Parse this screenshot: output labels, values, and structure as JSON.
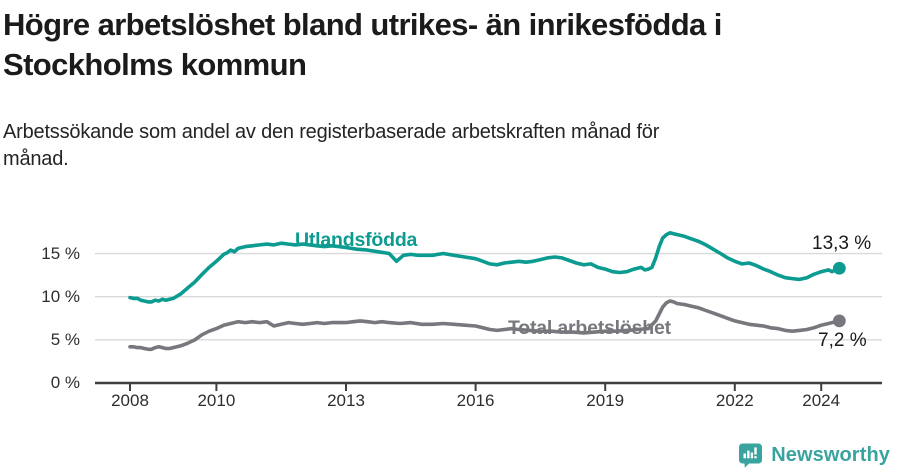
{
  "header": {
    "title_lines": [
      "Högre arbetslöshet bland utrikes- än inrikesfödda i",
      "Stockholms kommun"
    ],
    "subtitle_lines": [
      "Arbetssökande som andel av den registerbaserade arbetskraften månad för",
      "månad."
    ]
  },
  "footer": {
    "brand": "Newsworthy",
    "brand_color": "#3ba39f",
    "logo_icon": "bar-chart-speech-bubble-icon"
  },
  "chart_data": {
    "type": "line",
    "title": "Högre arbetslöshet bland utrikes- än inrikesfödda i Stockholms kommun",
    "subtitle": "Arbetssökande som andel av den registerbaserade arbetskraften månad för månad.",
    "unit": "%",
    "grid": true,
    "x_axis": {
      "ticks": [
        2008,
        2010,
        2013,
        2016,
        2019,
        2022,
        2024
      ],
      "tick_labels": [
        "2008",
        "2010",
        "2013",
        "2016",
        "2019",
        "2022",
        "2024"
      ],
      "range": [
        2007.2,
        2025.4
      ]
    },
    "y_axis": {
      "ticks": [
        0,
        5,
        10,
        15
      ],
      "tick_labels": [
        "0 %",
        "5 %",
        "10 %",
        "15 %"
      ],
      "range": [
        0,
        18.5
      ]
    },
    "colors": {
      "grid": "#d9d9d9",
      "axis": "#3e3e3e",
      "text": "#2e2e2e"
    },
    "series": [
      {
        "name": "Utlandsfödda",
        "color": "#0c9b90",
        "end_label": "13,3 %",
        "end_value": 13.3,
        "points": [
          [
            2008.0,
            9.9
          ],
          [
            2008.08,
            9.8
          ],
          [
            2008.17,
            9.8
          ],
          [
            2008.25,
            9.6
          ],
          [
            2008.33,
            9.5
          ],
          [
            2008.42,
            9.4
          ],
          [
            2008.5,
            9.4
          ],
          [
            2008.58,
            9.6
          ],
          [
            2008.67,
            9.5
          ],
          [
            2008.75,
            9.7
          ],
          [
            2008.83,
            9.6
          ],
          [
            2008.92,
            9.7
          ],
          [
            2009.0,
            9.8
          ],
          [
            2009.17,
            10.3
          ],
          [
            2009.33,
            11.0
          ],
          [
            2009.5,
            11.7
          ],
          [
            2009.67,
            12.6
          ],
          [
            2009.83,
            13.4
          ],
          [
            2010.0,
            14.1
          ],
          [
            2010.17,
            14.9
          ],
          [
            2010.25,
            15.1
          ],
          [
            2010.33,
            15.4
          ],
          [
            2010.42,
            15.2
          ],
          [
            2010.5,
            15.6
          ],
          [
            2010.67,
            15.8
          ],
          [
            2010.83,
            15.9
          ],
          [
            2011.0,
            16.0
          ],
          [
            2011.17,
            16.1
          ],
          [
            2011.33,
            16.0
          ],
          [
            2011.5,
            16.2
          ],
          [
            2011.67,
            16.1
          ],
          [
            2011.83,
            16.0
          ],
          [
            2012.0,
            16.1
          ],
          [
            2012.17,
            16.0
          ],
          [
            2012.33,
            15.9
          ],
          [
            2012.5,
            15.8
          ],
          [
            2012.67,
            15.9
          ],
          [
            2012.83,
            15.8
          ],
          [
            2013.0,
            15.7
          ],
          [
            2013.25,
            15.5
          ],
          [
            2013.5,
            15.4
          ],
          [
            2013.75,
            15.2
          ],
          [
            2014.0,
            15.0
          ],
          [
            2014.17,
            14.1
          ],
          [
            2014.33,
            14.8
          ],
          [
            2014.5,
            14.9
          ],
          [
            2014.67,
            14.8
          ],
          [
            2014.83,
            14.8
          ],
          [
            2015.0,
            14.8
          ],
          [
            2015.25,
            15.0
          ],
          [
            2015.5,
            14.8
          ],
          [
            2015.75,
            14.6
          ],
          [
            2016.0,
            14.4
          ],
          [
            2016.17,
            14.1
          ],
          [
            2016.33,
            13.8
          ],
          [
            2016.5,
            13.7
          ],
          [
            2016.67,
            13.9
          ],
          [
            2016.83,
            14.0
          ],
          [
            2017.0,
            14.1
          ],
          [
            2017.17,
            14.0
          ],
          [
            2017.33,
            14.1
          ],
          [
            2017.5,
            14.3
          ],
          [
            2017.67,
            14.5
          ],
          [
            2017.83,
            14.6
          ],
          [
            2018.0,
            14.5
          ],
          [
            2018.17,
            14.2
          ],
          [
            2018.33,
            13.9
          ],
          [
            2018.5,
            13.7
          ],
          [
            2018.67,
            13.8
          ],
          [
            2018.83,
            13.4
          ],
          [
            2019.0,
            13.2
          ],
          [
            2019.17,
            12.9
          ],
          [
            2019.33,
            12.8
          ],
          [
            2019.5,
            12.9
          ],
          [
            2019.67,
            13.2
          ],
          [
            2019.83,
            13.4
          ],
          [
            2019.92,
            13.1
          ],
          [
            2020.0,
            13.2
          ],
          [
            2020.08,
            13.4
          ],
          [
            2020.17,
            14.5
          ],
          [
            2020.25,
            15.8
          ],
          [
            2020.33,
            16.8
          ],
          [
            2020.42,
            17.2
          ],
          [
            2020.5,
            17.4
          ],
          [
            2020.58,
            17.3
          ],
          [
            2020.67,
            17.2
          ],
          [
            2020.83,
            17.0
          ],
          [
            2021.0,
            16.7
          ],
          [
            2021.17,
            16.4
          ],
          [
            2021.33,
            16.0
          ],
          [
            2021.5,
            15.5
          ],
          [
            2021.67,
            15.0
          ],
          [
            2021.83,
            14.5
          ],
          [
            2022.0,
            14.1
          ],
          [
            2022.17,
            13.8
          ],
          [
            2022.33,
            13.9
          ],
          [
            2022.5,
            13.6
          ],
          [
            2022.67,
            13.2
          ],
          [
            2022.83,
            12.9
          ],
          [
            2023.0,
            12.5
          ],
          [
            2023.17,
            12.2
          ],
          [
            2023.33,
            12.1
          ],
          [
            2023.5,
            12.0
          ],
          [
            2023.67,
            12.2
          ],
          [
            2023.83,
            12.6
          ],
          [
            2024.0,
            12.9
          ],
          [
            2024.17,
            13.1
          ],
          [
            2024.25,
            12.9
          ],
          [
            2024.33,
            13.1
          ],
          [
            2024.42,
            13.3
          ]
        ]
      },
      {
        "name": "Total arbetslöshet",
        "color": "#77777d",
        "end_label": "7,2 %",
        "end_value": 7.2,
        "points": [
          [
            2008.0,
            4.2
          ],
          [
            2008.08,
            4.2
          ],
          [
            2008.17,
            4.1
          ],
          [
            2008.25,
            4.1
          ],
          [
            2008.33,
            4.0
          ],
          [
            2008.42,
            3.9
          ],
          [
            2008.5,
            3.9
          ],
          [
            2008.58,
            4.1
          ],
          [
            2008.67,
            4.2
          ],
          [
            2008.75,
            4.1
          ],
          [
            2008.83,
            4.0
          ],
          [
            2008.92,
            4.0
          ],
          [
            2009.0,
            4.1
          ],
          [
            2009.17,
            4.3
          ],
          [
            2009.33,
            4.6
          ],
          [
            2009.5,
            5.0
          ],
          [
            2009.67,
            5.6
          ],
          [
            2009.83,
            6.0
          ],
          [
            2010.0,
            6.3
          ],
          [
            2010.17,
            6.7
          ],
          [
            2010.33,
            6.9
          ],
          [
            2010.5,
            7.1
          ],
          [
            2010.67,
            7.0
          ],
          [
            2010.83,
            7.1
          ],
          [
            2011.0,
            7.0
          ],
          [
            2011.17,
            7.1
          ],
          [
            2011.33,
            6.6
          ],
          [
            2011.5,
            6.8
          ],
          [
            2011.67,
            7.0
          ],
          [
            2011.83,
            6.9
          ],
          [
            2012.0,
            6.8
          ],
          [
            2012.17,
            6.9
          ],
          [
            2012.33,
            7.0
          ],
          [
            2012.5,
            6.9
          ],
          [
            2012.67,
            7.0
          ],
          [
            2012.83,
            7.0
          ],
          [
            2013.0,
            7.0
          ],
          [
            2013.17,
            7.1
          ],
          [
            2013.33,
            7.2
          ],
          [
            2013.5,
            7.1
          ],
          [
            2013.67,
            7.0
          ],
          [
            2013.83,
            7.1
          ],
          [
            2014.0,
            7.0
          ],
          [
            2014.25,
            6.9
          ],
          [
            2014.5,
            7.0
          ],
          [
            2014.75,
            6.8
          ],
          [
            2015.0,
            6.8
          ],
          [
            2015.25,
            6.9
          ],
          [
            2015.5,
            6.8
          ],
          [
            2015.75,
            6.7
          ],
          [
            2016.0,
            6.6
          ],
          [
            2016.17,
            6.4
          ],
          [
            2016.33,
            6.2
          ],
          [
            2016.5,
            6.1
          ],
          [
            2016.67,
            6.2
          ],
          [
            2016.83,
            6.3
          ],
          [
            2017.0,
            6.2
          ],
          [
            2017.25,
            6.1
          ],
          [
            2017.5,
            6.0
          ],
          [
            2017.75,
            6.0
          ],
          [
            2018.0,
            5.9
          ],
          [
            2018.25,
            5.9
          ],
          [
            2018.5,
            5.8
          ],
          [
            2018.75,
            5.9
          ],
          [
            2019.0,
            6.0
          ],
          [
            2019.25,
            6.0
          ],
          [
            2019.5,
            6.1
          ],
          [
            2019.75,
            6.2
          ],
          [
            2020.0,
            6.3
          ],
          [
            2020.17,
            7.2
          ],
          [
            2020.25,
            8.0
          ],
          [
            2020.33,
            8.8
          ],
          [
            2020.42,
            9.3
          ],
          [
            2020.5,
            9.5
          ],
          [
            2020.58,
            9.4
          ],
          [
            2020.67,
            9.2
          ],
          [
            2020.83,
            9.1
          ],
          [
            2021.0,
            8.9
          ],
          [
            2021.17,
            8.7
          ],
          [
            2021.33,
            8.4
          ],
          [
            2021.5,
            8.1
          ],
          [
            2021.67,
            7.8
          ],
          [
            2021.83,
            7.5
          ],
          [
            2022.0,
            7.2
          ],
          [
            2022.17,
            7.0
          ],
          [
            2022.33,
            6.8
          ],
          [
            2022.5,
            6.7
          ],
          [
            2022.67,
            6.6
          ],
          [
            2022.83,
            6.4
          ],
          [
            2023.0,
            6.3
          ],
          [
            2023.17,
            6.1
          ],
          [
            2023.33,
            6.0
          ],
          [
            2023.5,
            6.1
          ],
          [
            2023.67,
            6.2
          ],
          [
            2023.83,
            6.4
          ],
          [
            2024.0,
            6.7
          ],
          [
            2024.17,
            6.9
          ],
          [
            2024.33,
            7.1
          ],
          [
            2024.42,
            7.2
          ]
        ]
      }
    ]
  }
}
